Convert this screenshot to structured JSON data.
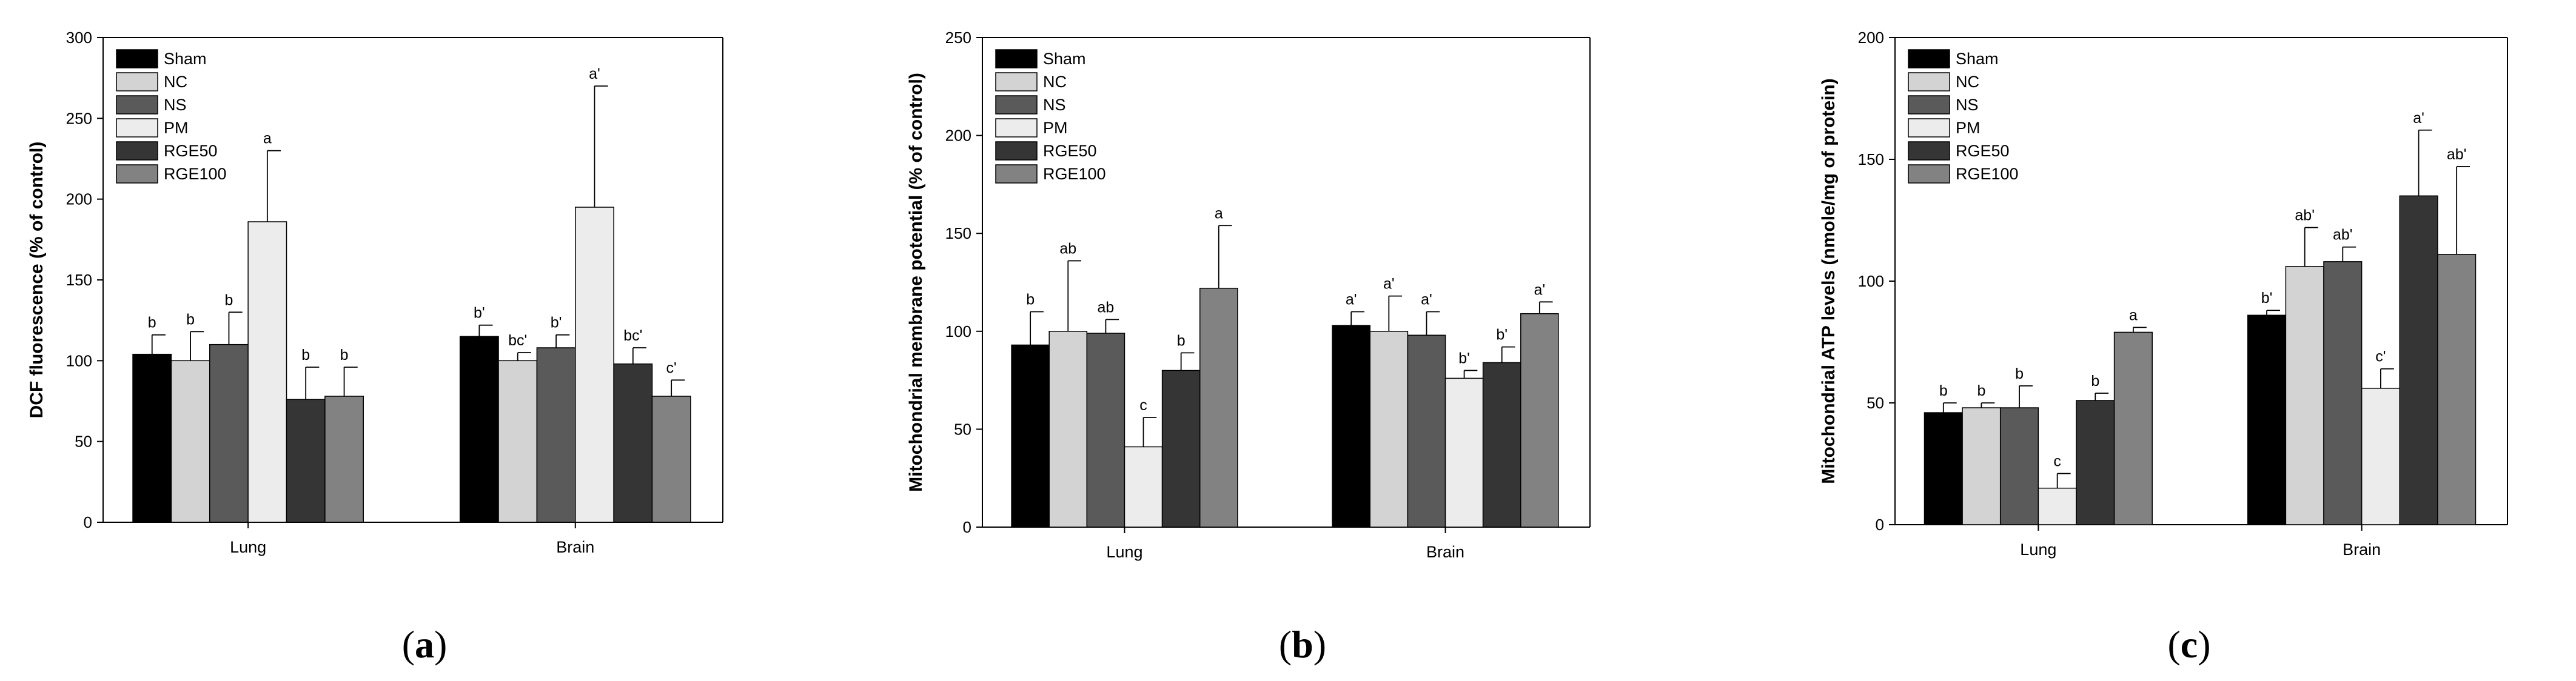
{
  "colors": {
    "Sham": "#000000",
    "NC": "#d3d3d3",
    "NS": "#5a5a5a",
    "PM": "#ececec",
    "RGE50": "#353535",
    "RGE100": "#828282"
  },
  "chart_data": [
    {
      "id": "a",
      "type": "bar",
      "caption_letter": "a",
      "caption_open": "(",
      "caption_close": ")",
      "ylabel": "DCF fluorescence (% of control)",
      "xlabel": "",
      "ylim": [
        0,
        300
      ],
      "yticks": [
        "0",
        "50",
        "100",
        "150",
        "200",
        "250",
        "300"
      ],
      "categories": [
        "Lung",
        "Brain"
      ],
      "legend_position": "top-left",
      "series": [
        {
          "name": "Sham",
          "values": [
            104,
            115
          ],
          "errors": [
            12,
            7
          ],
          "labels": [
            "b",
            "b'"
          ]
        },
        {
          "name": "NC",
          "values": [
            100,
            100
          ],
          "errors": [
            18,
            5
          ],
          "labels": [
            "b",
            "bc'"
          ]
        },
        {
          "name": "NS",
          "values": [
            110,
            108
          ],
          "errors": [
            20,
            8
          ],
          "labels": [
            "b",
            "b'"
          ]
        },
        {
          "name": "PM",
          "values": [
            186,
            195
          ],
          "errors": [
            44,
            75
          ],
          "labels": [
            "a",
            "a'"
          ]
        },
        {
          "name": "RGE50",
          "values": [
            76,
            98
          ],
          "errors": [
            20,
            10
          ],
          "labels": [
            "b",
            "bc'"
          ]
        },
        {
          "name": "RGE100",
          "values": [
            78,
            78
          ],
          "errors": [
            18,
            10
          ],
          "labels": [
            "b",
            "c'"
          ]
        }
      ]
    },
    {
      "id": "b",
      "type": "bar",
      "caption_letter": "b",
      "caption_open": "(",
      "caption_close": ")",
      "ylabel": "Mitochondrial membrane potential (% of control)",
      "xlabel": "",
      "ylim": [
        0,
        250
      ],
      "yticks": [
        "0",
        "50",
        "100",
        "150",
        "200",
        "250"
      ],
      "categories": [
        "Lung",
        "Brain"
      ],
      "legend_position": "top-left",
      "series": [
        {
          "name": "Sham",
          "values": [
            93,
            103
          ],
          "errors": [
            17,
            7
          ],
          "labels": [
            "b",
            "a'"
          ]
        },
        {
          "name": "NC",
          "values": [
            100,
            100
          ],
          "errors": [
            36,
            18
          ],
          "labels": [
            "ab",
            "a'"
          ]
        },
        {
          "name": "NS",
          "values": [
            99,
            98
          ],
          "errors": [
            7,
            12
          ],
          "labels": [
            "ab",
            "a'"
          ]
        },
        {
          "name": "PM",
          "values": [
            41,
            76
          ],
          "errors": [
            15,
            4
          ],
          "labels": [
            "c",
            "b'"
          ]
        },
        {
          "name": "RGE50",
          "values": [
            80,
            84
          ],
          "errors": [
            9,
            8
          ],
          "labels": [
            "b",
            "b'"
          ]
        },
        {
          "name": "RGE100",
          "values": [
            122,
            109
          ],
          "errors": [
            32,
            6
          ],
          "labels": [
            "a",
            "a'"
          ]
        }
      ]
    },
    {
      "id": "c",
      "type": "bar",
      "caption_letter": "c",
      "caption_open": "(",
      "caption_close": ")",
      "ylabel": "Mitochondrial ATP levels (nmole/mg of protein)",
      "xlabel": "",
      "ylim": [
        0,
        200
      ],
      "yticks": [
        "0",
        "50",
        "100",
        "150",
        "200"
      ],
      "categories": [
        "Lung",
        "Brain"
      ],
      "legend_position": "top-left",
      "series": [
        {
          "name": "Sham",
          "values": [
            46,
            86
          ],
          "errors": [
            4,
            2
          ],
          "labels": [
            "b",
            "b'"
          ]
        },
        {
          "name": "NC",
          "values": [
            48,
            106
          ],
          "errors": [
            2,
            16
          ],
          "labels": [
            "b",
            "ab'"
          ]
        },
        {
          "name": "NS",
          "values": [
            48,
            108
          ],
          "errors": [
            9,
            6
          ],
          "labels": [
            "b",
            "ab'"
          ]
        },
        {
          "name": "PM",
          "values": [
            15,
            56
          ],
          "errors": [
            6,
            8
          ],
          "labels": [
            "c",
            "c'"
          ]
        },
        {
          "name": "RGE50",
          "values": [
            51,
            135
          ],
          "errors": [
            3,
            27
          ],
          "labels": [
            "b",
            "a'"
          ]
        },
        {
          "name": "RGE100",
          "values": [
            79,
            111
          ],
          "errors": [
            2,
            36
          ],
          "labels": [
            "a",
            "ab'"
          ]
        }
      ]
    }
  ]
}
